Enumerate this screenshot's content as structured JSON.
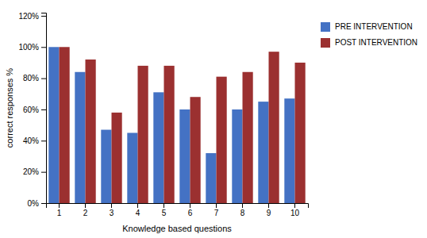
{
  "chart_data": {
    "type": "bar",
    "categories": [
      "1",
      "2",
      "3",
      "4",
      "5",
      "6",
      "7",
      "8",
      "9",
      "10"
    ],
    "series": [
      {
        "name": "PRE INTERVENTION",
        "color": "#4472c4",
        "values": [
          100,
          84,
          47,
          45,
          71,
          60,
          32,
          60,
          65,
          67
        ]
      },
      {
        "name": "POST INTERVENTION",
        "color": "#9b3030",
        "values": [
          100,
          92,
          58,
          88,
          88,
          68,
          81,
          84,
          97,
          90
        ]
      }
    ],
    "xlabel": "Knowledge based questions",
    "ylabel": "correct responses %",
    "ylim": [
      0,
      122
    ],
    "yticks": [
      {
        "value": 0,
        "label": "0%"
      },
      {
        "value": 20,
        "label": "20%"
      },
      {
        "value": 40,
        "label": "40%"
      },
      {
        "value": 60,
        "label": "60%"
      },
      {
        "value": 80,
        "label": "80%"
      },
      {
        "value": 100,
        "label": "100%"
      },
      {
        "value": 120,
        "label": "120%"
      }
    ],
    "legend": "right",
    "grid": false
  }
}
